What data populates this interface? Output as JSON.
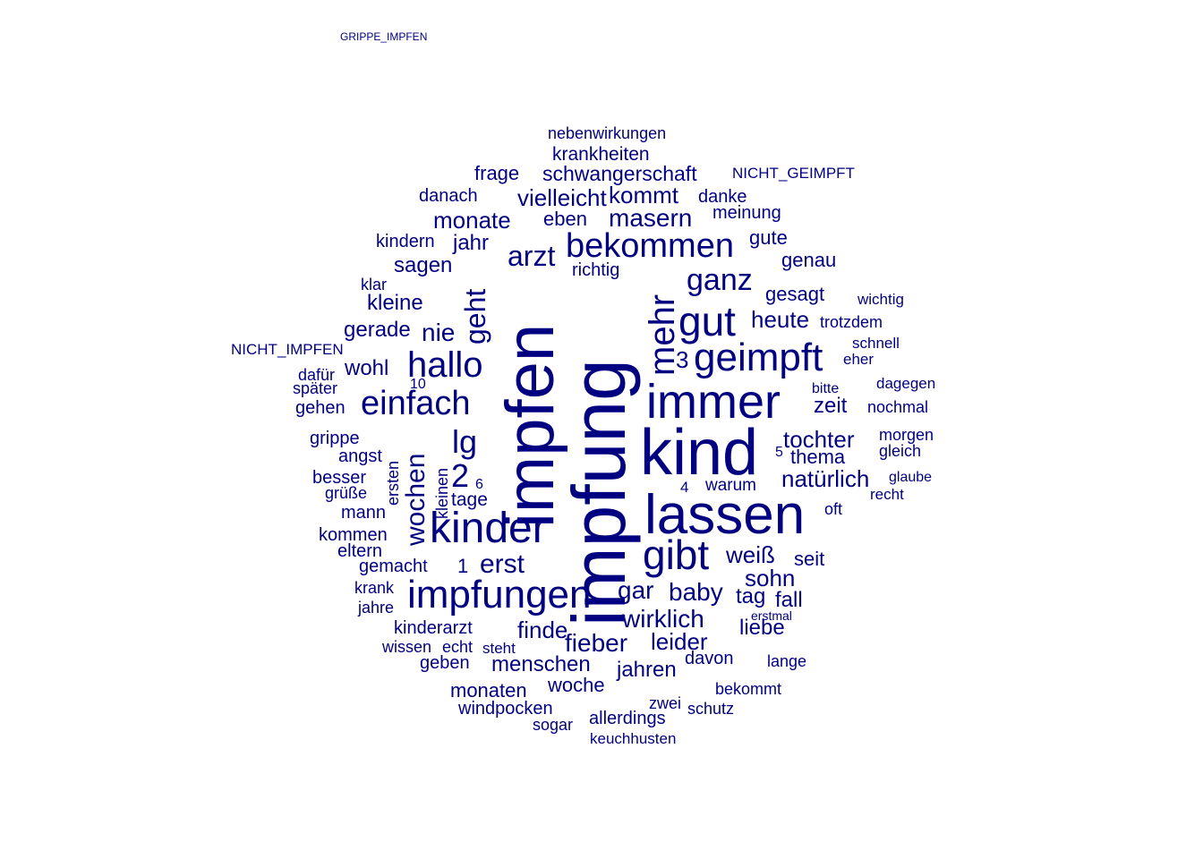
{
  "cloud": {
    "color": "#000080",
    "background": "#ffffff",
    "words": [
      {
        "text": "impfung",
        "weight": 100,
        "rotated": true
      },
      {
        "text": "impfen",
        "weight": 94,
        "rotated": true
      },
      {
        "text": "kind",
        "weight": 78,
        "rotated": false
      },
      {
        "text": "lassen",
        "weight": 68,
        "rotated": false
      },
      {
        "text": "immer",
        "weight": 62,
        "rotated": false
      },
      {
        "text": "kinder",
        "weight": 55,
        "rotated": false
      },
      {
        "text": "impfungen",
        "weight": 50,
        "rotated": false
      },
      {
        "text": "gibt",
        "weight": 50,
        "rotated": false
      },
      {
        "text": "geimpft",
        "weight": 48,
        "rotated": false
      },
      {
        "text": "bekommen",
        "weight": 44,
        "rotated": false
      },
      {
        "text": "einfach",
        "weight": 42,
        "rotated": false
      },
      {
        "text": "hallo",
        "weight": 42,
        "rotated": false
      },
      {
        "text": "mehr",
        "weight": 42,
        "rotated": true
      },
      {
        "text": "gut",
        "weight": 44,
        "rotated": false
      },
      {
        "text": "ganz",
        "weight": 38,
        "rotated": false
      },
      {
        "text": "arzt",
        "weight": 33,
        "rotated": false
      },
      {
        "text": "lg",
        "weight": 36,
        "rotated": false
      },
      {
        "text": "geht",
        "weight": 32,
        "rotated": true
      },
      {
        "text": "wochen",
        "weight": 30,
        "rotated": true
      },
      {
        "text": "erst",
        "weight": 30,
        "rotated": false
      },
      {
        "text": "2",
        "weight": 34,
        "rotated": false
      },
      {
        "text": "wirklich",
        "weight": 28,
        "rotated": false
      },
      {
        "text": "baby",
        "weight": 28,
        "rotated": false
      },
      {
        "text": "gar",
        "weight": 28,
        "rotated": false
      },
      {
        "text": "masern",
        "weight": 26,
        "rotated": false
      },
      {
        "text": "vielleicht",
        "weight": 26,
        "rotated": false
      },
      {
        "text": "kommt",
        "weight": 24,
        "rotated": false
      },
      {
        "text": "schwangerschaft",
        "weight": 22,
        "rotated": false
      },
      {
        "text": "monate",
        "weight": 24,
        "rotated": false
      },
      {
        "text": "nie",
        "weight": 26,
        "rotated": false
      },
      {
        "text": "sagen",
        "weight": 22,
        "rotated": false
      },
      {
        "text": "jahr",
        "weight": 22,
        "rotated": false
      },
      {
        "text": "fieber",
        "weight": 24,
        "rotated": false
      },
      {
        "text": "leider",
        "weight": 24,
        "rotated": false
      },
      {
        "text": "finde",
        "weight": 24,
        "rotated": false
      },
      {
        "text": "sohn",
        "weight": 24,
        "rotated": false
      },
      {
        "text": "heute",
        "weight": 24,
        "rotated": false
      },
      {
        "text": "weiß",
        "weight": 22,
        "rotated": false
      },
      {
        "text": "tochter",
        "weight": 24,
        "rotated": false
      },
      {
        "text": "natürlich",
        "weight": 24,
        "rotated": false
      },
      {
        "text": "menschen",
        "weight": 22,
        "rotated": false
      },
      {
        "text": "jahren",
        "weight": 22,
        "rotated": false
      },
      {
        "text": "tag",
        "weight": 22,
        "rotated": false
      },
      {
        "text": "liebe",
        "weight": 22,
        "rotated": false
      },
      {
        "text": "gesagt",
        "weight": 20,
        "rotated": false
      },
      {
        "text": "gute",
        "weight": 20,
        "rotated": false
      },
      {
        "text": "genau",
        "weight": 20,
        "rotated": false
      },
      {
        "text": "zeit",
        "weight": 20,
        "rotated": false
      },
      {
        "text": "thema",
        "weight": 20,
        "rotated": false
      },
      {
        "text": "seit",
        "weight": 20,
        "rotated": false
      },
      {
        "text": "fall",
        "weight": 20,
        "rotated": false
      },
      {
        "text": "wohl",
        "weight": 20,
        "rotated": false
      },
      {
        "text": "gerade",
        "weight": 20,
        "rotated": false
      },
      {
        "text": "kleine",
        "weight": 20,
        "rotated": false
      },
      {
        "text": "woche",
        "weight": 20,
        "rotated": false
      },
      {
        "text": "monaten",
        "weight": 20,
        "rotated": false
      },
      {
        "text": "windpocken",
        "weight": 18,
        "rotated": false
      },
      {
        "text": "allerdings",
        "weight": 18,
        "rotated": false
      },
      {
        "text": "krankheiten",
        "weight": 18,
        "rotated": false
      },
      {
        "text": "danke",
        "weight": 18,
        "rotated": false
      },
      {
        "text": "meinung",
        "weight": 18,
        "rotated": false
      },
      {
        "text": "eben",
        "weight": 18,
        "rotated": false
      },
      {
        "text": "frage",
        "weight": 18,
        "rotated": false
      },
      {
        "text": "danach",
        "weight": 18,
        "rotated": false
      },
      {
        "text": "richtig",
        "weight": 18,
        "rotated": false
      },
      {
        "text": "kindern",
        "weight": 18,
        "rotated": false
      },
      {
        "text": "grippe",
        "weight": 18,
        "rotated": false
      },
      {
        "text": "angst",
        "weight": 18,
        "rotated": false
      },
      {
        "text": "besser",
        "weight": 18,
        "rotated": false
      },
      {
        "text": "gehen",
        "weight": 18,
        "rotated": false
      },
      {
        "text": "mann",
        "weight": 18,
        "rotated": false
      },
      {
        "text": "kommen",
        "weight": 18,
        "rotated": false
      },
      {
        "text": "gemacht",
        "weight": 18,
        "rotated": false
      },
      {
        "text": "eltern",
        "weight": 18,
        "rotated": false
      },
      {
        "text": "kinderarzt",
        "weight": 18,
        "rotated": false
      },
      {
        "text": "geben",
        "weight": 18,
        "rotated": false
      },
      {
        "text": "davon",
        "weight": 18,
        "rotated": false
      },
      {
        "text": "lange",
        "weight": 16,
        "rotated": false
      },
      {
        "text": "warum",
        "weight": 16,
        "rotated": false
      },
      {
        "text": "morgen",
        "weight": 16,
        "rotated": false
      },
      {
        "text": "gleich",
        "weight": 16,
        "rotated": false
      },
      {
        "text": "nochmal",
        "weight": 16,
        "rotated": false
      },
      {
        "text": "dagegen",
        "weight": 15,
        "rotated": false
      },
      {
        "text": "trotzdem",
        "weight": 16,
        "rotated": false
      },
      {
        "text": "schnell",
        "weight": 15,
        "rotated": false
      },
      {
        "text": "wichtig",
        "weight": 15,
        "rotated": false
      },
      {
        "text": "eher",
        "weight": 15,
        "rotated": false
      },
      {
        "text": "bitte",
        "weight": 14,
        "rotated": false
      },
      {
        "text": "recht",
        "weight": 15,
        "rotated": false
      },
      {
        "text": "glaube",
        "weight": 14,
        "rotated": false
      },
      {
        "text": "oft",
        "weight": 15,
        "rotated": false
      },
      {
        "text": "krank",
        "weight": 16,
        "rotated": false
      },
      {
        "text": "jahre",
        "weight": 16,
        "rotated": false
      },
      {
        "text": "wissen",
        "weight": 16,
        "rotated": false
      },
      {
        "text": "echt",
        "weight": 16,
        "rotated": false
      },
      {
        "text": "steht",
        "weight": 16,
        "rotated": false
      },
      {
        "text": "tage",
        "weight": 18,
        "rotated": false
      },
      {
        "text": "grüße",
        "weight": 18,
        "rotated": false
      },
      {
        "text": "später",
        "weight": 16,
        "rotated": false
      },
      {
        "text": "dafür",
        "weight": 16,
        "rotated": false
      },
      {
        "text": "klar",
        "weight": 16,
        "rotated": false
      },
      {
        "text": "NICHT_IMPFEN",
        "weight": 16,
        "rotated": false
      },
      {
        "text": "NICHT_GEIMPFT",
        "weight": 15,
        "rotated": false
      },
      {
        "text": "nebenwirkungen",
        "weight": 16,
        "rotated": false
      },
      {
        "text": "kleinen",
        "weight": 16,
        "rotated": true
      },
      {
        "text": "ersten",
        "weight": 16,
        "rotated": true
      },
      {
        "text": "bekommt",
        "weight": 16,
        "rotated": false
      },
      {
        "text": "schutz",
        "weight": 16,
        "rotated": false
      },
      {
        "text": "zwei",
        "weight": 16,
        "rotated": false
      },
      {
        "text": "keuchhusten",
        "weight": 16,
        "rotated": false
      },
      {
        "text": "sogar",
        "weight": 16,
        "rotated": false
      },
      {
        "text": "erstmal",
        "weight": 12,
        "rotated": false
      },
      {
        "text": "3",
        "weight": 26,
        "rotated": false
      },
      {
        "text": "1",
        "weight": 22,
        "rotated": false
      },
      {
        "text": "4",
        "weight": 16,
        "rotated": false
      },
      {
        "text": "5",
        "weight": 14,
        "rotated": false
      },
      {
        "text": "6",
        "weight": 14,
        "rotated": false
      },
      {
        "text": "10",
        "weight": 14,
        "rotated": false
      },
      {
        "text": "GRIPPE_IMPFEN",
        "weight": 11,
        "rotated": false
      }
    ]
  }
}
